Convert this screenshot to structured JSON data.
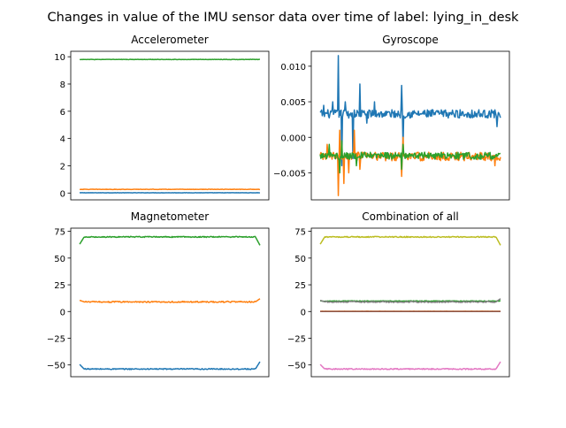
{
  "figure": {
    "title": "Changes in value of the IMU sensor data over time of label: lying_in_desk"
  },
  "colors": {
    "blue": "#1f77b4",
    "orange": "#ff7f0e",
    "green": "#2ca02c",
    "red": "#d62728",
    "purple": "#9467bd",
    "brown": "#8c564b",
    "pink": "#e377c2",
    "gray": "#7f7f7f",
    "olive": "#bcbd22"
  },
  "chart_data": [
    {
      "id": "accelerometer",
      "type": "line",
      "title": "Accelerometer",
      "xlabel": "",
      "ylabel": "",
      "ylim": [
        -0.5,
        10.4
      ],
      "yticks": [
        0,
        2,
        4,
        6,
        8,
        10
      ],
      "ytick_labels": [
        "0",
        "2",
        "4",
        "6",
        "8",
        "10"
      ],
      "xticks_visible": false,
      "legend": "none",
      "grid": false,
      "series": [
        {
          "color": "blue",
          "base": 0.02,
          "noise": 0.01,
          "spikes": []
        },
        {
          "color": "orange",
          "base": 0.27,
          "noise": 0.015,
          "spikes": []
        },
        {
          "color": "green",
          "base": 9.8,
          "noise": 0.015,
          "spikes": []
        }
      ]
    },
    {
      "id": "gyroscope",
      "type": "line",
      "title": "Gyroscope",
      "xlabel": "",
      "ylabel": "",
      "ylim": [
        -0.0088,
        0.0121
      ],
      "yticks": [
        -0.005,
        0.0,
        0.005,
        0.01
      ],
      "ytick_labels": [
        "−0.005",
        "0.000",
        "0.005",
        "0.010"
      ],
      "xticks_visible": false,
      "legend": "none",
      "grid": false,
      "series": [
        {
          "color": "blue",
          "base": 0.0033,
          "noise": 0.0006,
          "spikes": [
            [
              0.02,
              0.0045
            ],
            [
              0.07,
              0.005
            ],
            [
              0.1,
              0.0115
            ],
            [
              0.12,
              -0.004
            ],
            [
              0.14,
              0.005
            ],
            [
              0.18,
              -0.003
            ],
            [
              0.22,
              0.0075
            ],
            [
              0.26,
              0.002
            ],
            [
              0.3,
              0.005
            ],
            [
              0.45,
              0.0073
            ],
            [
              0.46,
              -0.0012
            ],
            [
              0.98,
              0.0015
            ]
          ]
        },
        {
          "color": "orange",
          "base": -0.0027,
          "noise": 0.0006,
          "spikes": [
            [
              0.04,
              -0.001
            ],
            [
              0.1,
              -0.0082
            ],
            [
              0.11,
              0.001
            ],
            [
              0.13,
              -0.0065
            ],
            [
              0.16,
              -0.005
            ],
            [
              0.19,
              0.001
            ],
            [
              0.22,
              -0.0045
            ],
            [
              0.45,
              -0.0055
            ],
            [
              0.46,
              0.0
            ],
            [
              0.97,
              -0.004
            ]
          ]
        },
        {
          "color": "green",
          "base": -0.0026,
          "noise": 0.0005,
          "spikes": [
            [
              0.05,
              -0.001
            ],
            [
              0.11,
              -0.005
            ],
            [
              0.12,
              -0.0005
            ],
            [
              0.2,
              -0.004
            ],
            [
              0.45,
              -0.0045
            ],
            [
              0.46,
              -0.001
            ]
          ]
        }
      ]
    },
    {
      "id": "magnetometer",
      "type": "line",
      "title": "Magnetometer",
      "xlabel": "",
      "ylabel": "",
      "ylim": [
        -61,
        78
      ],
      "yticks": [
        -50,
        -25,
        0,
        25,
        50,
        75
      ],
      "ytick_labels": [
        "−50",
        "−25",
        "0",
        "25",
        "50",
        "75"
      ],
      "xticks_visible": false,
      "legend": "none",
      "grid": false,
      "series": [
        {
          "color": "blue",
          "base": -53.8,
          "noise": 0.5,
          "start": -49.5,
          "end": -47.0
        },
        {
          "color": "orange",
          "base": 9.0,
          "noise": 0.6,
          "start": 10.5,
          "end": 12.0
        },
        {
          "color": "green",
          "base": 69.8,
          "noise": 0.5,
          "start": 63.0,
          "end": 62.0
        }
      ]
    },
    {
      "id": "combination",
      "type": "line",
      "title": "Combination of all",
      "xlabel": "",
      "ylabel": "",
      "ylim": [
        -61,
        78
      ],
      "yticks": [
        -50,
        -25,
        0,
        25,
        50,
        75
      ],
      "ytick_labels": [
        "−50",
        "−25",
        "0",
        "25",
        "50",
        "75"
      ],
      "xticks_visible": false,
      "legend": "none",
      "grid": false,
      "series": [
        {
          "color": "blue",
          "base": 0.02,
          "noise": 0.01
        },
        {
          "color": "orange",
          "base": 0.27,
          "noise": 0.015
        },
        {
          "color": "green",
          "base": 9.8,
          "noise": 0.3
        },
        {
          "color": "red",
          "base": 0.003,
          "noise": 0.01
        },
        {
          "color": "purple",
          "base": -0.003,
          "noise": 0.01
        },
        {
          "color": "brown",
          "base": -0.003,
          "noise": 0.01
        },
        {
          "color": "pink",
          "base": -53.8,
          "noise": 0.5,
          "start": -49.5,
          "end": -47.0
        },
        {
          "color": "gray",
          "base": 9.0,
          "noise": 0.6,
          "start": 10.5,
          "end": 12.0
        },
        {
          "color": "olive",
          "base": 69.8,
          "noise": 0.5,
          "start": 63.0,
          "end": 62.0
        }
      ]
    }
  ]
}
